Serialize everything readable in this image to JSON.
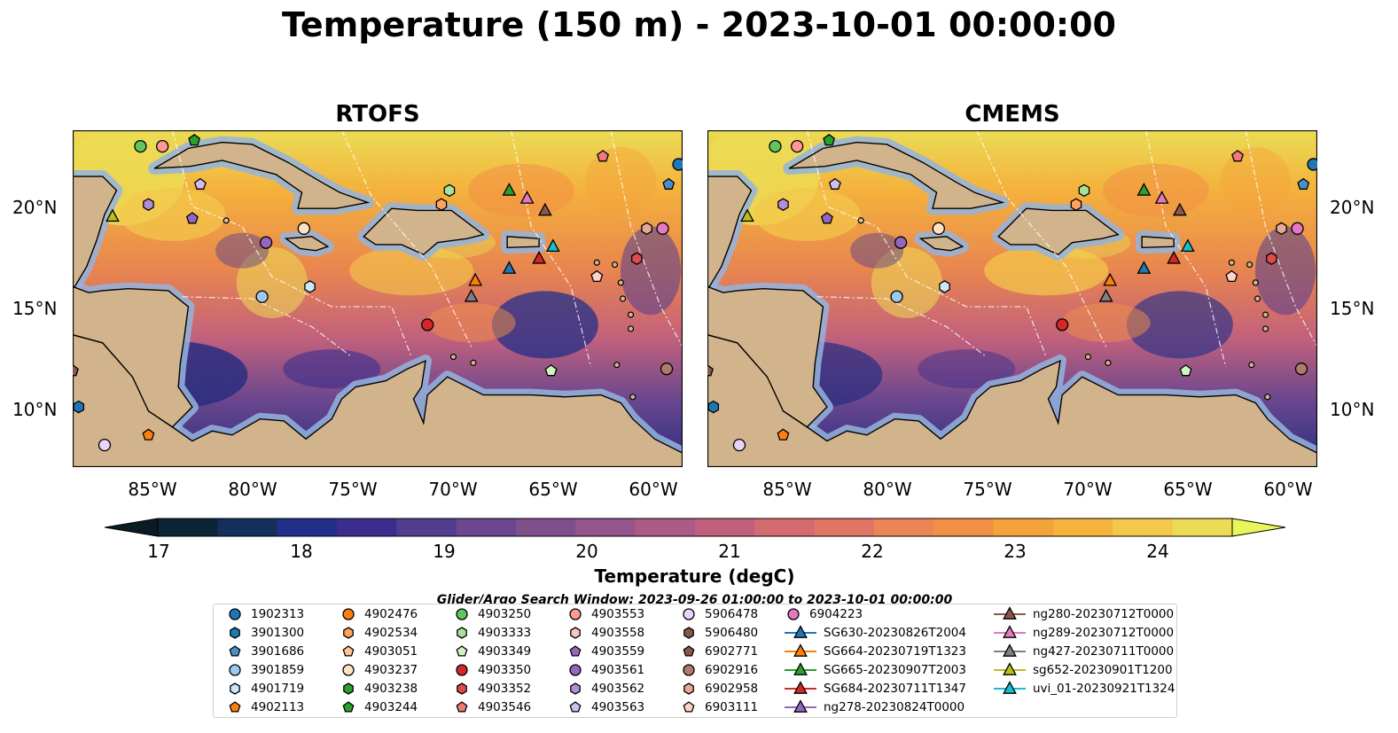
{
  "title": "Temperature (150 m) - 2023-10-01 00:00:00",
  "panels": [
    {
      "title": "RTOFS"
    },
    {
      "title": "CMEMS"
    }
  ],
  "lat_labels": [
    "20°N",
    "15°N",
    "10°N"
  ],
  "lon_labels": [
    "85°W",
    "80°W",
    "75°W",
    "70°W",
    "65°W",
    "60°W"
  ],
  "colorbar": {
    "label": "Temperature (degC)",
    "ticks": [
      "17",
      "18",
      "19",
      "20",
      "21",
      "22",
      "23",
      "24"
    ],
    "colors": [
      "#0c2536",
      "#13305c",
      "#222f8a",
      "#3b2d8e",
      "#523c8f",
      "#6a478e",
      "#7f4f8c",
      "#95548c",
      "#ad5a86",
      "#c1607d",
      "#d36b70",
      "#e17566",
      "#ec8556",
      "#f29046",
      "#f5a33b",
      "#f6b43c",
      "#f4c84a",
      "#ecdc55"
    ],
    "extend_low": "#0a1b24",
    "extend_high": "#e9f55a"
  },
  "search_window": "Glider/Argo Search Window: 2023-09-26 01:00:00 to 2023-10-01 00:00:00",
  "legend": [
    {
      "label": "1902313",
      "marker": "circle",
      "color": "#1f77b4"
    },
    {
      "label": "3901300",
      "marker": "hexagon",
      "color": "#1f77b4"
    },
    {
      "label": "3901686",
      "marker": "pentagon",
      "color": "#4a90c8"
    },
    {
      "label": "3901859",
      "marker": "circle",
      "color": "#9ec9ef"
    },
    {
      "label": "4901719",
      "marker": "hexagon",
      "color": "#cde6fa"
    },
    {
      "label": "4902113",
      "marker": "pentagon",
      "color": "#ff7f0e"
    },
    {
      "label": "4902476",
      "marker": "circle",
      "color": "#ff7f0e"
    },
    {
      "label": "4902534",
      "marker": "hexagon",
      "color": "#ffa35c"
    },
    {
      "label": "4903051",
      "marker": "pentagon",
      "color": "#ffc48f"
    },
    {
      "label": "4903237",
      "marker": "circle",
      "color": "#ffe2c4"
    },
    {
      "label": "4903238",
      "marker": "hexagon",
      "color": "#2ca02c"
    },
    {
      "label": "4903244",
      "marker": "pentagon",
      "color": "#2ca02c"
    },
    {
      "label": "4903250",
      "marker": "circle",
      "color": "#5fc65f"
    },
    {
      "label": "4903333",
      "marker": "hexagon",
      "color": "#a6e39a"
    },
    {
      "label": "4903349",
      "marker": "pentagon",
      "color": "#ccf5c0"
    },
    {
      "label": "4903350",
      "marker": "circle",
      "color": "#d62728"
    },
    {
      "label": "4903352",
      "marker": "hexagon",
      "color": "#e24a4a"
    },
    {
      "label": "4903546",
      "marker": "pentagon",
      "color": "#f07a7a"
    },
    {
      "label": "4903553",
      "marker": "circle",
      "color": "#ff9896"
    },
    {
      "label": "4903558",
      "marker": "hexagon",
      "color": "#ffc4c2"
    },
    {
      "label": "4903559",
      "marker": "pentagon",
      "color": "#9467bd"
    },
    {
      "label": "4903561",
      "marker": "circle",
      "color": "#9467bd"
    },
    {
      "label": "4903562",
      "marker": "hexagon",
      "color": "#b08fd6"
    },
    {
      "label": "4903563",
      "marker": "pentagon",
      "color": "#d2bdee"
    },
    {
      "label": "5906478",
      "marker": "circle",
      "color": "#e8d4fa"
    },
    {
      "label": "5906480",
      "marker": "hexagon",
      "color": "#8c564b"
    },
    {
      "label": "6902771",
      "marker": "pentagon",
      "color": "#8c564b"
    },
    {
      "label": "6902916",
      "marker": "circle",
      "color": "#b07a6d"
    },
    {
      "label": "6902958",
      "marker": "hexagon",
      "color": "#e8a898"
    },
    {
      "label": "6903111",
      "marker": "pentagon",
      "color": "#fcd4c8"
    },
    {
      "label": "6904223",
      "marker": "circle",
      "color": "#e377c2"
    },
    {
      "label": "SG630-20230826T2004",
      "marker": "triangle-line",
      "color": "#1f77b4"
    },
    {
      "label": "SG664-20230719T1323",
      "marker": "triangle-line",
      "color": "#ff7f0e"
    },
    {
      "label": "SG665-20230907T2003",
      "marker": "triangle-line",
      "color": "#2ca02c"
    },
    {
      "label": "SG684-20230711T1347",
      "marker": "triangle-line",
      "color": "#d62728"
    },
    {
      "label": "ng278-20230824T0000",
      "marker": "triangle-line",
      "color": "#9467bd"
    },
    {
      "label": "ng280-20230712T0000",
      "marker": "triangle-line",
      "color": "#8c564b"
    },
    {
      "label": "ng289-20230712T0000",
      "marker": "triangle-line",
      "color": "#e377c2"
    },
    {
      "label": "ng427-20230711T0000",
      "marker": "triangle-line",
      "color": "#7f7f7f"
    },
    {
      "label": "sg652-20230901T1200",
      "marker": "triangle-line",
      "color": "#bcbd22"
    },
    {
      "label": "uvi_01-20230921T1324",
      "marker": "triangle-line",
      "color": "#17becf"
    }
  ],
  "map_markers": [
    {
      "id": "4903250",
      "lon": -85.6,
      "lat": 23.0
    },
    {
      "id": "4903553",
      "lon": -84.5,
      "lat": 23.0
    },
    {
      "id": "4903244",
      "lon": -82.9,
      "lat": 23.3
    },
    {
      "id": "4903563",
      "lon": -82.6,
      "lat": 21.1
    },
    {
      "id": "4903562",
      "lon": -85.2,
      "lat": 20.1
    },
    {
      "id": "sg652-20230901T1200",
      "lon": -87.0,
      "lat": 19.5
    },
    {
      "id": "4903559",
      "lon": -83.0,
      "lat": 19.4
    },
    {
      "id": "4903561",
      "lon": -79.3,
      "lat": 18.2
    },
    {
      "id": "4903237",
      "lon": -77.4,
      "lat": 18.9
    },
    {
      "id": "4901719",
      "lon": -77.1,
      "lat": 16.0
    },
    {
      "id": "3901859",
      "lon": -79.5,
      "lat": 15.5
    },
    {
      "id": "4903333",
      "lon": -70.1,
      "lat": 20.8
    },
    {
      "id": "4902534",
      "lon": -70.5,
      "lat": 20.1
    },
    {
      "id": "SG665-20230907T2003",
      "lon": -67.1,
      "lat": 20.8
    },
    {
      "id": "ng289-20230712T0000",
      "lon": -66.2,
      "lat": 20.4
    },
    {
      "id": "ng280-20230712T0000",
      "lon": -65.3,
      "lat": 19.8
    },
    {
      "id": "uvi_01-20230921T1324",
      "lon": -64.9,
      "lat": 18.0
    },
    {
      "id": "SG684-20230711T1347",
      "lon": -65.6,
      "lat": 17.4
    },
    {
      "id": "SG630-20230826T2004",
      "lon": -67.1,
      "lat": 16.9
    },
    {
      "id": "SG664-20230719T1323",
      "lon": -68.8,
      "lat": 16.3
    },
    {
      "id": "ng427-20230711T0000",
      "lon": -69.0,
      "lat": 15.5
    },
    {
      "id": "4903350",
      "lon": -71.2,
      "lat": 14.1
    },
    {
      "id": "4903546",
      "lon": -62.4,
      "lat": 22.5
    },
    {
      "id": "1902313",
      "lon": -58.6,
      "lat": 22.1
    },
    {
      "id": "3901686",
      "lon": -59.1,
      "lat": 21.1
    },
    {
      "id": "6902958",
      "lon": -60.2,
      "lat": 18.9
    },
    {
      "id": "4903352",
      "lon": -60.7,
      "lat": 17.4
    },
    {
      "id": "6904223",
      "lon": -59.4,
      "lat": 18.9
    },
    {
      "id": "6903111",
      "lon": -62.7,
      "lat": 16.5
    },
    {
      "id": "4903349",
      "lon": -65.0,
      "lat": 11.8
    },
    {
      "id": "6902916",
      "lon": -59.2,
      "lat": 11.9
    },
    {
      "id": "5906478",
      "lon": -87.4,
      "lat": 8.1
    },
    {
      "id": "4902113",
      "lon": -85.2,
      "lat": 8.6
    },
    {
      "id": "3901300",
      "lon": -88.7,
      "lat": 10.0
    },
    {
      "id": "6902771",
      "lon": -89.0,
      "lat": 11.8
    }
  ]
}
